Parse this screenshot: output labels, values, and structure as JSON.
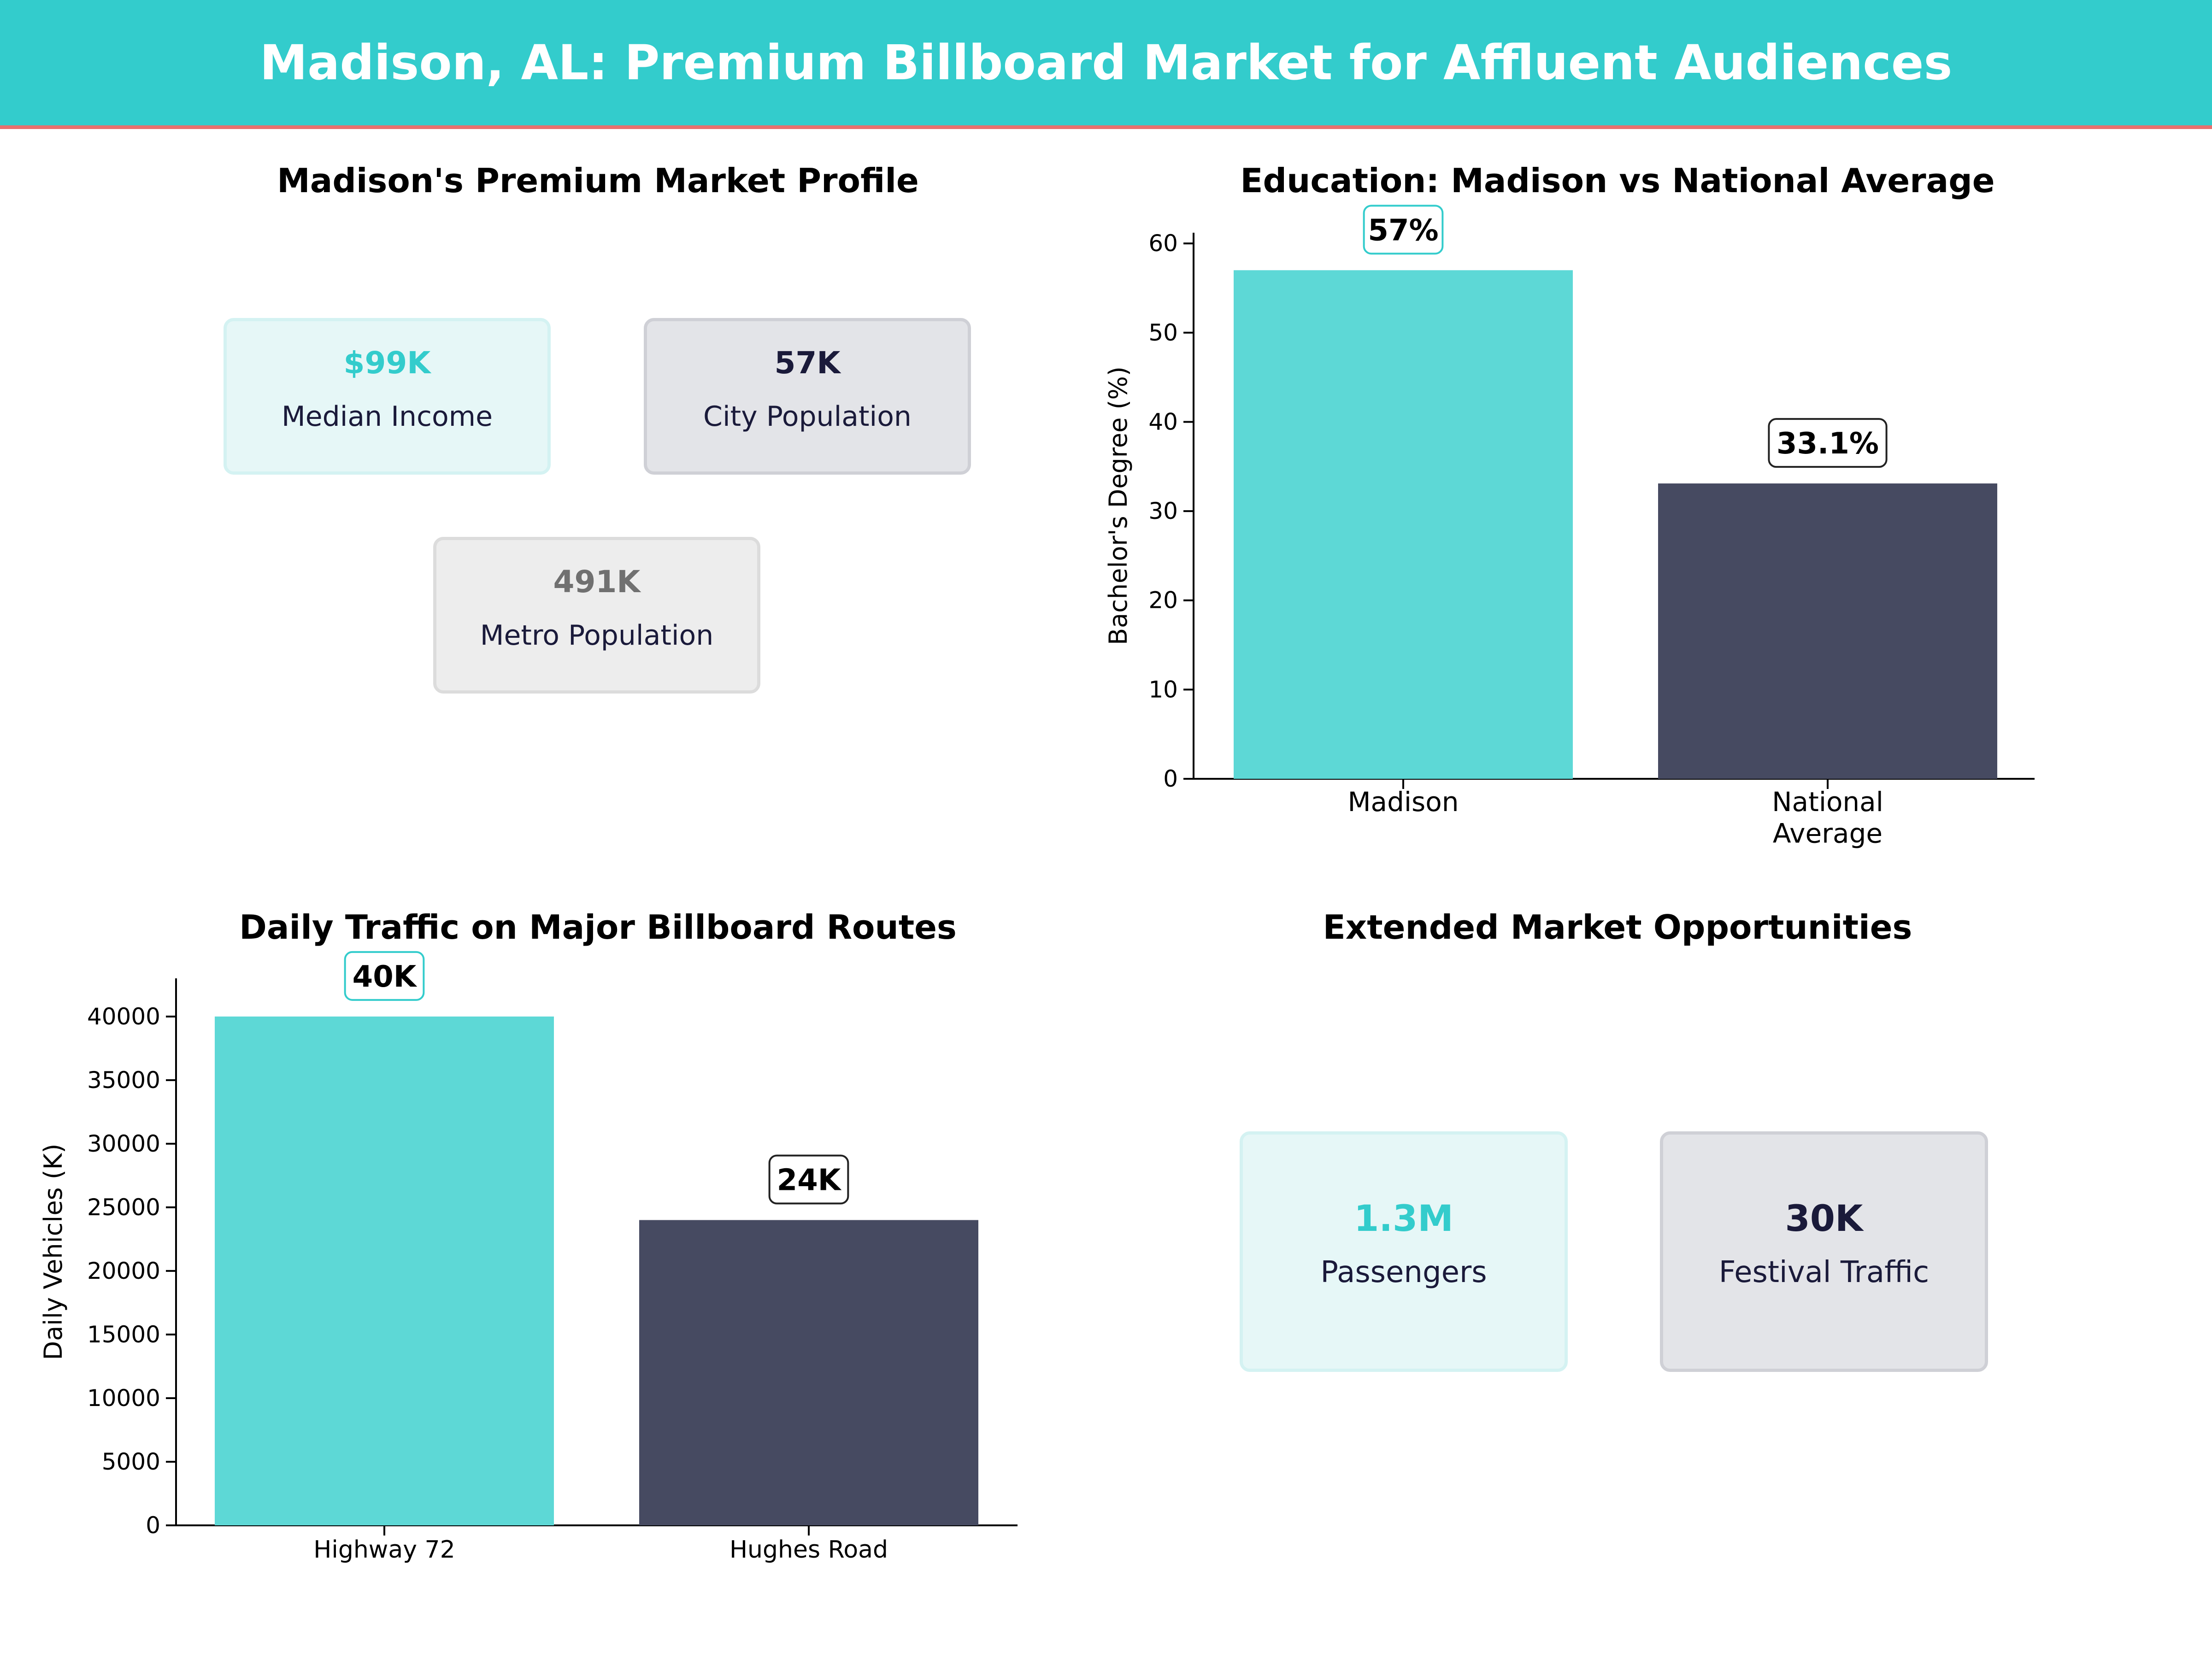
{
  "header": {
    "title": "Madison, AL: Premium Billboard Market for Affluent Audiences"
  },
  "colors": {
    "accent": "#33cccc",
    "accent_bar": "#5dd8d6",
    "dark": "#464a61",
    "stripe": "#e8706e"
  },
  "profile": {
    "title": "Madison's Premium Market Profile",
    "cards": [
      {
        "value": "$99K",
        "label": "Median Income"
      },
      {
        "value": "57K",
        "label": "City Population"
      },
      {
        "value": "491K",
        "label": "Metro Population"
      }
    ]
  },
  "extended": {
    "title": "Extended Market Opportunities",
    "cards": [
      {
        "value": "1.3M",
        "label": "Passengers"
      },
      {
        "value": "30K",
        "label": "Festival Traffic"
      }
    ]
  },
  "chart_data": [
    {
      "type": "bar",
      "title": "Education: Madison vs National Average",
      "xlabel": "",
      "ylabel": "Bachelor's Degree (%)",
      "categories": [
        "Madison",
        "National\nAverage"
      ],
      "values": [
        57,
        33.1
      ],
      "data_labels": [
        "57%",
        "33.1%"
      ],
      "ylim": [
        0,
        61.2
      ],
      "yticks": [
        0,
        10,
        20,
        30,
        40,
        50,
        60
      ],
      "ytick_labels": [
        "0",
        "10",
        "20",
        "30",
        "40",
        "50",
        "60"
      ],
      "grid": false
    },
    {
      "type": "bar",
      "title": "Daily Traffic on Major Billboard Routes",
      "xlabel": "",
      "ylabel": "Daily Vehicles (K)",
      "categories": [
        "Highway 72",
        "Hughes Road"
      ],
      "values": [
        40000,
        24000
      ],
      "data_labels": [
        "40K",
        "24K"
      ],
      "ylim": [
        0,
        43000
      ],
      "yticks": [
        0,
        5000,
        10000,
        15000,
        20000,
        25000,
        30000,
        35000,
        40000
      ],
      "ytick_labels": [
        "0",
        "5000",
        "10000",
        "15000",
        "20000",
        "25000",
        "30000",
        "35000",
        "40000"
      ],
      "grid": false
    }
  ]
}
